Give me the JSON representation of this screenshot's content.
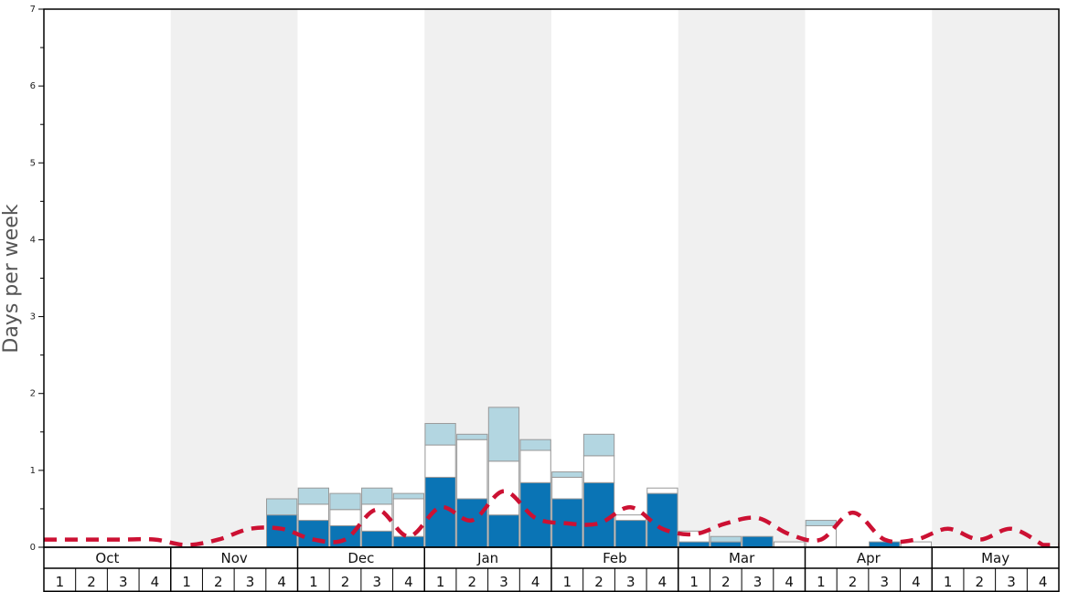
{
  "chart_data": {
    "type": "bar",
    "stacked": true,
    "ylabel": "Days per week",
    "ylim": [
      0,
      7
    ],
    "yticks": [
      0,
      1,
      2,
      3,
      4,
      5,
      6,
      7
    ],
    "months": [
      "Oct",
      "Nov",
      "Dec",
      "Jan",
      "Feb",
      "Mar",
      "Apr",
      "May"
    ],
    "weeks_per_month": [
      "1",
      "2",
      "3",
      "4"
    ],
    "background_bands": "alternating white / light grey per month, grey on Nov, Jan, Mar, May",
    "series": [
      {
        "color": "#0a74b5",
        "values": [
          0,
          0,
          0,
          0,
          0,
          0,
          0,
          0.42,
          0.35,
          0.28,
          0.21,
          0.14,
          0.91,
          0.63,
          0.42,
          0.84,
          0.63,
          0.84,
          0.35,
          0.7,
          0.07,
          0.07,
          0.14,
          0,
          0,
          0,
          0.07,
          0,
          0,
          0,
          0,
          0
        ]
      },
      {
        "color": "#ffffff",
        "values": [
          0,
          0,
          0,
          0,
          0,
          0,
          0,
          0,
          0.21,
          0.21,
          0.35,
          0.49,
          0.42,
          0.77,
          0.7,
          0.42,
          0.28,
          0.35,
          0.07,
          0.07,
          0.14,
          0,
          0,
          0.07,
          0.28,
          0,
          0,
          0.07,
          0,
          0,
          0,
          0
        ]
      },
      {
        "color": "#b3d6e1",
        "values": [
          0,
          0,
          0,
          0,
          0,
          0,
          0,
          0.21,
          0.21,
          0.21,
          0.21,
          0.07,
          0.28,
          0.07,
          0.7,
          0.14,
          0.07,
          0.28,
          0,
          0,
          0,
          0.07,
          0,
          0,
          0.07,
          0,
          0,
          0,
          0,
          0,
          0,
          0
        ]
      }
    ],
    "line": {
      "color": "#cc1133",
      "style": "dashed",
      "values": [
        0.1,
        0.1,
        0.1,
        0.1,
        0.03,
        0.1,
        0.24,
        0.24,
        0.1,
        0.1,
        0.49,
        0.14,
        0.52,
        0.35,
        0.73,
        0.38,
        0.31,
        0.31,
        0.52,
        0.24,
        0.17,
        0.31,
        0.38,
        0.17,
        0.1,
        0.45,
        0.1,
        0.1,
        0.24,
        0.1,
        0.24,
        0.03
      ]
    }
  }
}
